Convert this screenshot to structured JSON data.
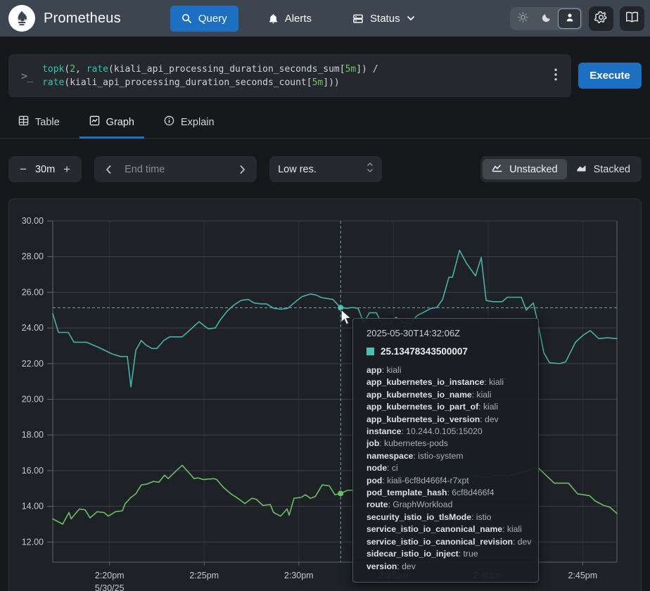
{
  "header": {
    "brand": "Prometheus",
    "nav": {
      "query": "Query",
      "alerts": "Alerts",
      "status": "Status"
    }
  },
  "query_bar": {
    "prompt": ">_",
    "execute": "Execute",
    "lines": [
      [
        [
          "topk",
          "fn"
        ],
        [
          "(",
          "p"
        ],
        [
          "2",
          "num"
        ],
        [
          ", ",
          "p"
        ],
        [
          "rate",
          "fn"
        ],
        [
          "(",
          "p"
        ],
        [
          "kiali_api_processing_duration_seconds_sum",
          "m"
        ],
        [
          "[",
          "p"
        ],
        [
          "5m",
          "dur"
        ],
        [
          "]",
          "p"
        ],
        [
          ")",
          "p"
        ],
        [
          " /",
          "p"
        ]
      ],
      [
        [
          "rate",
          "fn"
        ],
        [
          "(",
          "p"
        ],
        [
          "kiali_api_processing_duration_seconds_count",
          "m"
        ],
        [
          "[",
          "p"
        ],
        [
          "5m",
          "dur"
        ],
        [
          "]",
          "p"
        ],
        [
          "))",
          "p"
        ]
      ]
    ]
  },
  "tabs": {
    "table": "Table",
    "graph": "Graph",
    "explain": "Explain"
  },
  "controls": {
    "minus": "−",
    "range": "30m",
    "plus": "+",
    "end_time_placeholder": "End time",
    "resolution": "Low res.",
    "unstacked": "Unstacked",
    "stacked": "Stacked"
  },
  "colors": {
    "accent_blue": "#1d6fc2",
    "series_teal": "#46b2a8",
    "series_green": "#6abf69",
    "swatch": "#4fbfb2",
    "crosshair": "#6ba6b4",
    "grid": "#3e4248",
    "grid_vertical": "#2e3237",
    "plot_border": "#61666d",
    "axis_text": "#c5c9ce"
  },
  "chart_data": {
    "type": "line",
    "title": "",
    "xlabel": "",
    "ylabel": "",
    "grid": true,
    "legend": false,
    "x_axis": {
      "unit": "time (minutes after 14:00, 5/30/25)",
      "range": [
        17,
        46.81
      ],
      "ticks": [
        {
          "t": 20,
          "label": "2:20pm",
          "sub": "5/30/25"
        },
        {
          "t": 25,
          "label": "2:25pm"
        },
        {
          "t": 30,
          "label": "2:30pm"
        },
        {
          "t": 35,
          "label": "2:35pm"
        },
        {
          "t": 40,
          "label": "2:40pm"
        },
        {
          "t": 45,
          "label": "2:45pm"
        }
      ]
    },
    "y_axis": {
      "range": [
        10.87,
        30
      ],
      "ticks": [
        {
          "v": 12,
          "label": "12.00"
        },
        {
          "v": 14,
          "label": "14.00"
        },
        {
          "v": 16,
          "label": "16.00"
        },
        {
          "v": 18,
          "label": "18.00"
        },
        {
          "v": 20,
          "label": "20.00"
        },
        {
          "v": 22,
          "label": "22.00"
        },
        {
          "v": 24,
          "label": "24.00"
        },
        {
          "v": 26,
          "label": "26.00"
        },
        {
          "v": 28,
          "label": "28.00"
        },
        {
          "v": 30,
          "label": "30.00"
        }
      ]
    },
    "series": [
      {
        "name": "series-1-teal",
        "color": "#46b2a8",
        "points": [
          [
            17.0,
            24.8
          ],
          [
            17.3,
            23.75
          ],
          [
            17.82,
            23.75
          ],
          [
            18.12,
            23.2
          ],
          [
            18.78,
            23.2
          ],
          [
            19.45,
            22.9
          ],
          [
            20.12,
            22.55
          ],
          [
            20.57,
            22.4
          ],
          [
            20.94,
            22.4
          ],
          [
            21.13,
            20.7
          ],
          [
            21.39,
            22.75
          ],
          [
            21.68,
            23.3
          ],
          [
            21.91,
            23.05
          ],
          [
            22.24,
            22.85
          ],
          [
            22.5,
            22.85
          ],
          [
            22.87,
            23.3
          ],
          [
            23.17,
            23.5
          ],
          [
            23.84,
            23.5
          ],
          [
            24.21,
            23.85
          ],
          [
            24.73,
            24.35
          ],
          [
            24.96,
            24.15
          ],
          [
            25.22,
            23.95
          ],
          [
            25.59,
            24.0
          ],
          [
            25.85,
            24.45
          ],
          [
            26.22,
            24.95
          ],
          [
            26.59,
            25.3
          ],
          [
            26.96,
            25.55
          ],
          [
            27.33,
            25.6
          ],
          [
            27.63,
            25.4
          ],
          [
            28.0,
            25.35
          ],
          [
            28.3,
            25.35
          ],
          [
            28.67,
            25.1
          ],
          [
            29.04,
            25.05
          ],
          [
            29.42,
            25.1
          ],
          [
            29.86,
            25.5
          ],
          [
            30.16,
            25.75
          ],
          [
            30.61,
            25.9
          ],
          [
            30.9,
            25.85
          ],
          [
            31.2,
            25.7
          ],
          [
            31.5,
            25.65
          ],
          [
            31.8,
            25.6
          ],
          [
            32.21,
            25.135
          ],
          [
            32.54,
            25.1
          ],
          [
            32.84,
            25.15
          ],
          [
            33.13,
            25.1
          ],
          [
            33.43,
            24.3
          ],
          [
            33.73,
            24.85
          ],
          [
            34.1,
            24.85
          ],
          [
            34.4,
            24.2
          ],
          [
            34.77,
            24.2
          ],
          [
            35.14,
            24.6
          ],
          [
            35.51,
            24.3
          ],
          [
            35.88,
            24.25
          ],
          [
            36.26,
            24.7
          ],
          [
            36.63,
            24.9
          ],
          [
            37.0,
            25.1
          ],
          [
            37.3,
            25.15
          ],
          [
            37.6,
            25.6
          ],
          [
            37.93,
            26.84
          ],
          [
            38.12,
            26.84
          ],
          [
            38.49,
            28.35
          ],
          [
            38.86,
            27.63
          ],
          [
            39.34,
            26.92
          ],
          [
            39.64,
            27.95
          ],
          [
            39.9,
            25.54
          ],
          [
            40.27,
            25.47
          ],
          [
            40.75,
            25.47
          ],
          [
            41.01,
            25.72
          ],
          [
            41.76,
            25.72
          ],
          [
            42.02,
            25.0
          ],
          [
            42.39,
            25.4
          ],
          [
            42.61,
            24.4
          ],
          [
            42.95,
            22.6
          ],
          [
            43.25,
            22.05
          ],
          [
            43.8,
            22.0
          ],
          [
            44.1,
            22.1
          ],
          [
            44.62,
            23.2
          ],
          [
            45.03,
            23.6
          ],
          [
            45.4,
            23.85
          ],
          [
            45.85,
            23.4
          ],
          [
            46.29,
            23.45
          ],
          [
            46.81,
            23.4
          ]
        ]
      },
      {
        "name": "series-2-green",
        "color": "#6abf69",
        "points": [
          [
            17.0,
            13.3
          ],
          [
            17.52,
            13.0
          ],
          [
            17.86,
            13.65
          ],
          [
            17.97,
            13.3
          ],
          [
            18.41,
            13.85
          ],
          [
            18.71,
            13.8
          ],
          [
            18.97,
            13.35
          ],
          [
            19.34,
            13.7
          ],
          [
            19.71,
            13.65
          ],
          [
            19.94,
            13.45
          ],
          [
            20.31,
            13.7
          ],
          [
            20.68,
            13.75
          ],
          [
            20.83,
            14.15
          ],
          [
            21.13,
            14.5
          ],
          [
            21.39,
            14.7
          ],
          [
            21.68,
            15.2
          ],
          [
            21.98,
            15.25
          ],
          [
            22.32,
            15.4
          ],
          [
            22.61,
            15.35
          ],
          [
            22.91,
            15.75
          ],
          [
            23.1,
            15.55
          ],
          [
            23.28,
            15.75
          ],
          [
            23.84,
            16.3
          ],
          [
            24.18,
            15.9
          ],
          [
            24.47,
            15.55
          ],
          [
            24.66,
            15.6
          ],
          [
            24.96,
            15.5
          ],
          [
            25.51,
            15.55
          ],
          [
            25.66,
            15.5
          ],
          [
            26.03,
            15.05
          ],
          [
            26.41,
            14.7
          ],
          [
            26.78,
            14.45
          ],
          [
            27.15,
            14.15
          ],
          [
            27.52,
            14.45
          ],
          [
            27.74,
            14.4
          ],
          [
            28.11,
            14.05
          ],
          [
            28.49,
            14.1
          ],
          [
            28.67,
            13.65
          ],
          [
            29.04,
            13.45
          ],
          [
            29.38,
            13.85
          ],
          [
            29.49,
            13.5
          ],
          [
            29.75,
            14.45
          ],
          [
            30.12,
            14.5
          ],
          [
            30.35,
            14.65
          ],
          [
            30.61,
            14.45
          ],
          [
            30.87,
            14.55
          ],
          [
            31.24,
            15.2
          ],
          [
            31.61,
            15.15
          ],
          [
            31.91,
            14.65
          ],
          [
            32.21,
            14.72
          ],
          [
            32.58,
            14.9
          ],
          [
            32.84,
            14.9
          ],
          [
            33.21,
            15.0
          ],
          [
            33.77,
            15.3
          ],
          [
            34.32,
            15.2
          ],
          [
            34.88,
            15.5
          ],
          [
            35.44,
            15.4
          ],
          [
            36.0,
            15.6
          ],
          [
            36.55,
            15.5
          ],
          [
            37.11,
            15.65
          ],
          [
            37.67,
            15.5
          ],
          [
            38.23,
            15.6
          ],
          [
            38.78,
            15.55
          ],
          [
            39.34,
            15.7
          ],
          [
            39.9,
            15.6
          ],
          [
            40.46,
            15.75
          ],
          [
            41.01,
            15.7
          ],
          [
            41.57,
            15.85
          ],
          [
            42.13,
            16.0
          ],
          [
            42.61,
            16.2
          ],
          [
            43.5,
            15.3
          ],
          [
            44.25,
            15.3
          ],
          [
            44.73,
            14.7
          ],
          [
            45.36,
            14.6
          ],
          [
            45.66,
            14.3
          ],
          [
            46.11,
            14.05
          ],
          [
            46.44,
            13.95
          ],
          [
            46.81,
            13.6
          ]
        ]
      }
    ],
    "crosshair": {
      "time_min": 32.21,
      "teal_value": 25.13478343500007,
      "green_value": 14.72
    }
  },
  "tooltip": {
    "timestamp": "2025-05-30T14:32:06Z",
    "value": "25.13478343500007",
    "labels": [
      {
        "k": "app",
        "v": "kiali"
      },
      {
        "k": "app_kubernetes_io_instance",
        "v": "kiali"
      },
      {
        "k": "app_kubernetes_io_name",
        "v": "kiali"
      },
      {
        "k": "app_kubernetes_io_part_of",
        "v": "kiali"
      },
      {
        "k": "app_kubernetes_io_version",
        "v": "dev"
      },
      {
        "k": "instance",
        "v": "10.244.0.105:15020"
      },
      {
        "k": "job",
        "v": "kubernetes-pods"
      },
      {
        "k": "namespace",
        "v": "istio-system"
      },
      {
        "k": "node",
        "v": "ci"
      },
      {
        "k": "pod",
        "v": "kiali-6cf8d466f4-r7xpt"
      },
      {
        "k": "pod_template_hash",
        "v": "6cf8d466f4"
      },
      {
        "k": "route",
        "v": "GraphWorkload"
      },
      {
        "k": "security_istio_io_tlsMode",
        "v": "istio"
      },
      {
        "k": "service_istio_io_canonical_name",
        "v": "kiali"
      },
      {
        "k": "service_istio_io_canonical_revision",
        "v": "dev"
      },
      {
        "k": "sidecar_istio_io_inject",
        "v": "true"
      },
      {
        "k": "version",
        "v": "dev"
      }
    ]
  }
}
